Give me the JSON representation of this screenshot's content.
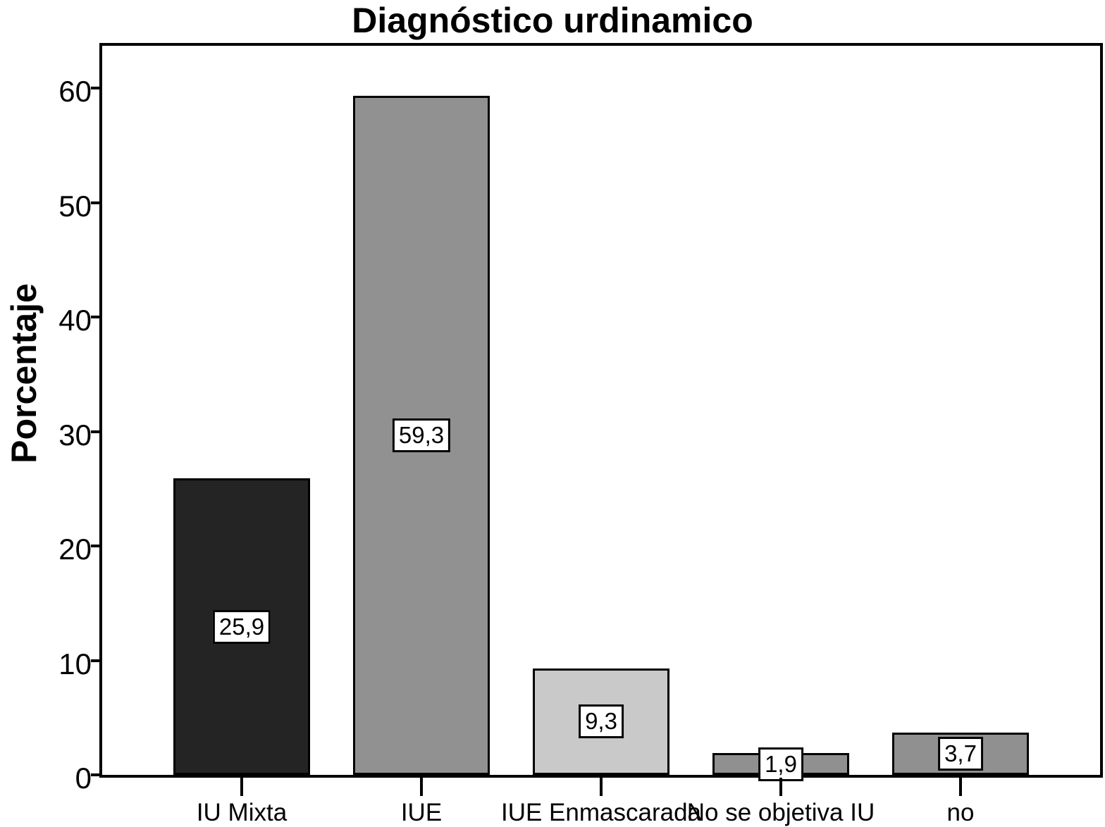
{
  "chart_data": {
    "type": "bar",
    "title": "Diagnóstico urdinamico",
    "xlabel": "",
    "ylabel": "Porcentaje",
    "categories": [
      "IU Mixta",
      "IUE",
      "IUE Enmascarada",
      "No se objetiva IU",
      "no"
    ],
    "values": [
      25.9,
      59.3,
      9.3,
      1.9,
      3.7
    ],
    "value_labels": [
      "25,9",
      "59,3",
      "9,3",
      "1,9",
      "3,7"
    ],
    "bar_colors": [
      "#242424",
      "#919191",
      "#c9c9c9",
      "#909090",
      "#909090"
    ],
    "bar_border_color": "#000000",
    "y_ticks": [
      0,
      10,
      20,
      30,
      40,
      50,
      60
    ],
    "ylim": [
      0,
      63.7
    ],
    "grid": false,
    "legend": null,
    "background_color": "#ffffff",
    "axis_color": "#000000",
    "value_label_box": {
      "fill": "#ffffff",
      "border": "#000000"
    }
  }
}
